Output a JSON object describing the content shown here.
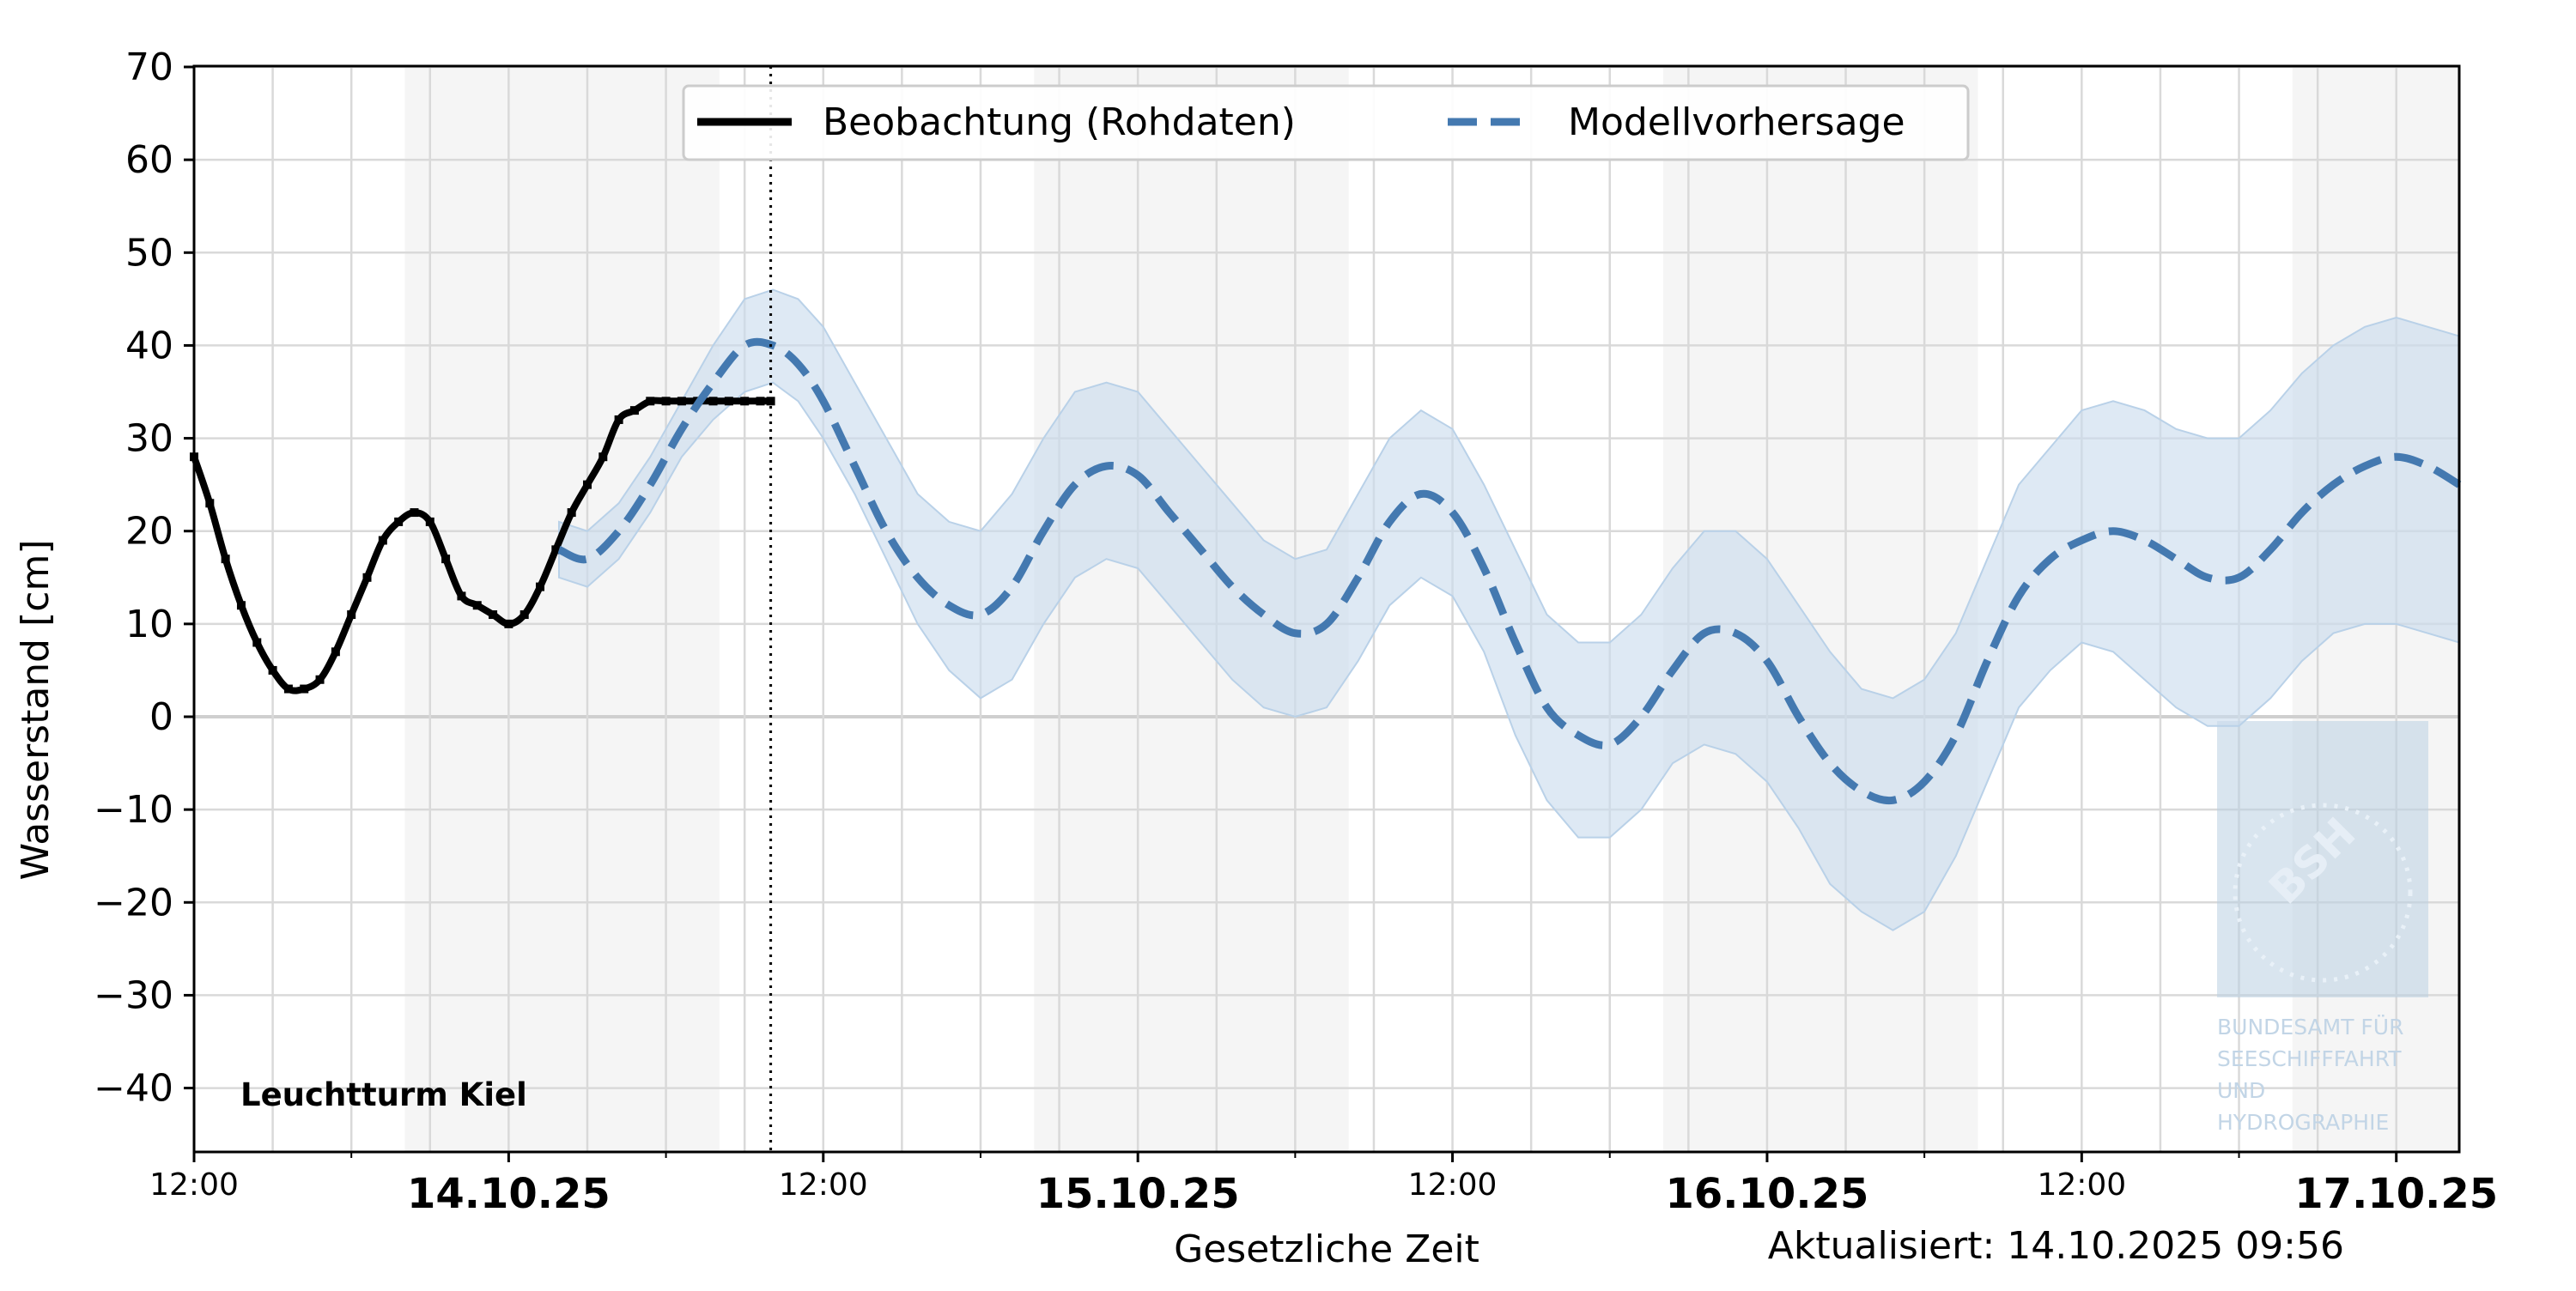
{
  "chart_data": {
    "type": "line",
    "title": "",
    "xlabel": "Gesetzliche Zeit",
    "ylabel": "Wasserstand [cm]",
    "ylim": [
      -48,
      70
    ],
    "xlim_hours": [
      0,
      72
    ],
    "grid": true,
    "legend_position": "top-center",
    "station": "Leuchtturm Kiel",
    "updated": "Aktualisiert: 14.10.2025 09:56",
    "now_hours": 18.33,
    "x_ticks_major": [
      {
        "h": 0,
        "label": "12:00"
      },
      {
        "h": 10,
        "label": "14.10.25"
      },
      {
        "h": 20,
        "label": "12:00"
      },
      {
        "h": 30,
        "label": "15.10.25"
      },
      {
        "h": 40,
        "label": "12:00"
      },
      {
        "h": 50,
        "label": "16.10.25"
      },
      {
        "h": 60,
        "label": "12:00"
      },
      {
        "h": 70,
        "label": "17.10.25"
      }
    ],
    "x_ticks_minor": [
      5,
      15,
      25,
      35,
      45,
      55,
      65
    ],
    "y_ticks": [
      70,
      60,
      50,
      40,
      30,
      20,
      10,
      0,
      -10,
      -20,
      -30,
      -40
    ],
    "night_bands_hours": [
      [
        6.7,
        16.7
      ],
      [
        26.7,
        36.7
      ],
      [
        46.7,
        56.7
      ],
      [
        66.7,
        72
      ]
    ],
    "colors": {
      "observation": "#000000",
      "forecast": "#4479b0",
      "band": "#c9dced",
      "night": "#f5f5f5",
      "grid": "#d9d9d9"
    },
    "series": [
      {
        "name": "Beobachtung (Rohdaten)",
        "style": "solid",
        "x_hours": [
          0,
          0.5,
          1,
          1.5,
          2,
          2.5,
          3,
          3.5,
          4,
          4.5,
          5,
          5.5,
          6,
          6.5,
          7,
          7.5,
          8,
          8.5,
          9,
          9.5,
          10,
          10.5,
          11,
          11.5,
          12,
          12.5,
          13,
          13.5,
          14,
          14.5,
          15,
          15.5,
          16,
          16.5,
          17,
          17.5,
          18,
          18.33
        ],
        "values": [
          28,
          23,
          17,
          12,
          8,
          5,
          3,
          3,
          4,
          7,
          11,
          15,
          19,
          21,
          22,
          21,
          17,
          13,
          12,
          11,
          10,
          11,
          14,
          18,
          22,
          25,
          28,
          32,
          33,
          34,
          34,
          34,
          34,
          34,
          34,
          34,
          34,
          34
        ]
      },
      {
        "name": "Modellvorhersage",
        "style": "dashed",
        "x_hours": [
          11.6,
          12.5,
          13.5,
          14.5,
          15.5,
          16.5,
          17.5,
          18.4,
          19.2,
          20,
          21,
          22,
          23,
          24,
          25,
          26,
          27,
          28,
          29,
          30,
          31,
          32,
          33,
          34,
          35,
          36,
          37,
          38,
          39,
          40,
          41,
          42,
          43,
          44,
          45,
          46,
          47,
          48,
          49,
          50,
          51,
          52,
          53,
          54,
          55,
          56,
          57,
          58,
          59,
          60,
          61,
          62,
          63,
          64,
          65,
          66,
          67,
          68,
          69,
          70,
          71,
          72
        ],
        "values": [
          18,
          17,
          20,
          25,
          31,
          36,
          40,
          40,
          38,
          34,
          27,
          20,
          15,
          12,
          11,
          14,
          20,
          25,
          27,
          26,
          22,
          18,
          14,
          11,
          9,
          10,
          15,
          21,
          24,
          22,
          16,
          8,
          1,
          -2,
          -3,
          0,
          5,
          9,
          9,
          6,
          0,
          -5,
          -8,
          -9,
          -7,
          -2,
          6,
          13,
          17,
          19,
          20,
          19,
          17,
          15,
          15,
          18,
          22,
          25,
          27,
          28,
          27,
          25
        ]
      }
    ],
    "band_upper": [
      21,
      20,
      23,
      28,
      34,
      40,
      45,
      46,
      45,
      42,
      36,
      30,
      24,
      21,
      20,
      24,
      30,
      35,
      36,
      35,
      31,
      27,
      23,
      19,
      17,
      18,
      24,
      30,
      33,
      31,
      25,
      18,
      11,
      8,
      8,
      11,
      16,
      20,
      20,
      17,
      12,
      7,
      3,
      2,
      4,
      9,
      17,
      25,
      29,
      33,
      34,
      33,
      31,
      30,
      30,
      33,
      37,
      40,
      42,
      43,
      42,
      41
    ],
    "band_lower": [
      15,
      14,
      17,
      22,
      28,
      32,
      35,
      36,
      34,
      30,
      24,
      17,
      10,
      5,
      2,
      4,
      10,
      15,
      17,
      16,
      12,
      8,
      4,
      1,
      0,
      1,
      6,
      12,
      15,
      13,
      7,
      -2,
      -9,
      -13,
      -13,
      -10,
      -5,
      -3,
      -4,
      -7,
      -12,
      -18,
      -21,
      -23,
      -21,
      -15,
      -7,
      1,
      5,
      8,
      7,
      4,
      1,
      -1,
      -1,
      2,
      6,
      9,
      10,
      10,
      9,
      8
    ]
  },
  "watermark": {
    "logo_text": "BSH",
    "lines": [
      "BUNDESAMT FÜR",
      "SEESCHIFFFAHRT",
      "UND",
      "HYDROGRAPHIE"
    ]
  }
}
